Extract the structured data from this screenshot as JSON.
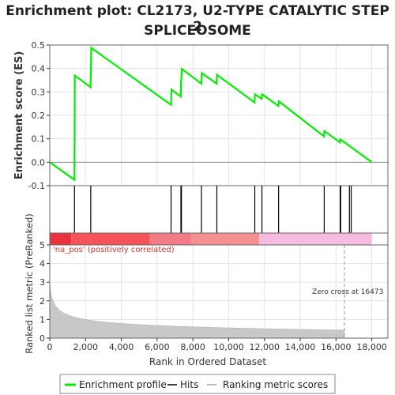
{
  "chart_data": {
    "type": "line",
    "title_line1": "Enrichment plot: CL2173, U2-TYPE CATALYTIC STEP 2",
    "title_line2": "SPLICEOSOME",
    "es_panel": {
      "ylabel": "Enrichment score (ES)",
      "ylim": [
        -0.1,
        0.5
      ],
      "yticks": [
        -0.1,
        0.0,
        0.1,
        0.2,
        0.3,
        0.4,
        0.5
      ],
      "ytick_labels": [
        "-0.1",
        "0.0",
        "0.1",
        "0.2",
        "0.3",
        "0.4",
        "0.5"
      ],
      "series": [
        {
          "name": "Enrichment profile",
          "color": "#00ee00",
          "x": [
            0,
            1380,
            1390,
            1400,
            2280,
            2300,
            2320,
            6780,
            6800,
            7320,
            7340,
            7380,
            8480,
            8500,
            9330,
            9350,
            11450,
            11470,
            11850,
            11870,
            12780,
            12800,
            15330,
            15350,
            16220,
            16240,
            18000
          ],
          "y": [
            0.0,
            -0.075,
            0.145,
            0.37,
            0.32,
            0.405,
            0.488,
            0.245,
            0.31,
            0.28,
            0.34,
            0.398,
            0.335,
            0.38,
            0.335,
            0.373,
            0.255,
            0.29,
            0.27,
            0.29,
            0.24,
            0.26,
            0.11,
            0.133,
            0.085,
            0.098,
            0.0
          ]
        }
      ]
    },
    "hits": [
      1380,
      2290,
      6780,
      7330,
      7360,
      8480,
      9340,
      11460,
      11860,
      12790,
      15340,
      16230,
      16260,
      16750,
      16850
    ],
    "color_bar": {
      "segments": [
        {
          "from": 0,
          "to": 1200,
          "color": "#e8323c"
        },
        {
          "from": 1200,
          "to": 5600,
          "color": "#f5525a"
        },
        {
          "from": 5600,
          "to": 7900,
          "color": "#f47a8a"
        },
        {
          "from": 7900,
          "to": 11700,
          "color": "#f59090"
        },
        {
          "from": 11700,
          "to": 18000,
          "color": "#f5bce0"
        }
      ]
    },
    "metric_panel": {
      "ylabel": "Ranked list metric (PreRanked)",
      "ylim": [
        0,
        5
      ],
      "yticks": [
        0,
        1,
        2,
        3,
        4,
        5
      ],
      "ytick_labels": [
        "0",
        "1",
        "2",
        "3",
        "4",
        "5"
      ],
      "annotation_pos": "'na_pos' (positively correlated)",
      "zero_cross_label": "Zero cross at 16473",
      "zero_cross_x": 16473
    },
    "xlabel": "Rank in Ordered Dataset",
    "xlim": [
      0,
      18900
    ],
    "xticks": [
      0,
      2000,
      4000,
      6000,
      8000,
      10000,
      12000,
      14000,
      16000,
      18000
    ],
    "xtick_labels": [
      "0",
      "2,000",
      "4,000",
      "6,000",
      "8,000",
      "10,000",
      "12,000",
      "14,000",
      "16,000",
      "18,000"
    ],
    "legend": {
      "placement": "bottom",
      "items": [
        {
          "label": "Enrichment profile",
          "color": "#00ee00"
        },
        {
          "label": "Hits",
          "color": "#000000"
        },
        {
          "label": "Ranking metric scores",
          "color": "#bbbbbb"
        }
      ]
    },
    "grid": true
  }
}
